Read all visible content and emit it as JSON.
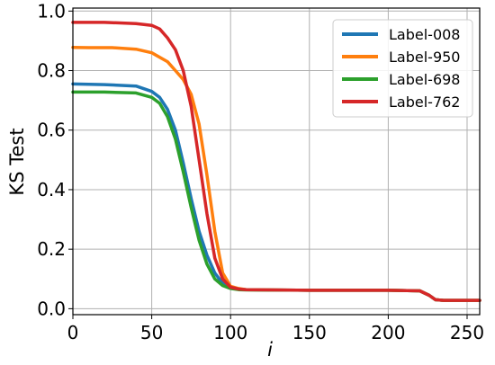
{
  "chart_data": {
    "type": "line",
    "title": "",
    "xlabel": "i",
    "ylabel": "KS Test",
    "xlim": [
      0,
      258
    ],
    "ylim": [
      -0.02,
      1.01
    ],
    "xticks": [
      0,
      50,
      100,
      150,
      200,
      250
    ],
    "xtick_labels": [
      "0",
      "50",
      "100",
      "150",
      "200",
      "250"
    ],
    "yticks": [
      0.0,
      0.2,
      0.4,
      0.6,
      0.8,
      1.0
    ],
    "ytick_labels": [
      "0.0",
      "0.2",
      "0.4",
      "0.6",
      "0.8",
      "1.0"
    ],
    "grid": true,
    "legend_position": "top-right",
    "series": [
      {
        "name": "Label-008",
        "color": "#1f77b4",
        "x": [
          0,
          20,
          40,
          50,
          55,
          60,
          65,
          70,
          75,
          80,
          85,
          90,
          95,
          100,
          105,
          110,
          150,
          200,
          220,
          226,
          230,
          235,
          258
        ],
        "y": [
          0.755,
          0.753,
          0.748,
          0.73,
          0.71,
          0.67,
          0.6,
          0.49,
          0.37,
          0.26,
          0.18,
          0.12,
          0.085,
          0.072,
          0.066,
          0.064,
          0.062,
          0.062,
          0.06,
          0.045,
          0.03,
          0.028,
          0.028
        ]
      },
      {
        "name": "Label-950",
        "color": "#ff7f0e",
        "x": [
          0,
          10,
          25,
          40,
          50,
          60,
          65,
          70,
          75,
          80,
          85,
          90,
          95,
          100,
          105,
          110,
          150,
          200,
          220,
          226,
          230,
          235,
          258
        ],
        "y": [
          0.878,
          0.877,
          0.877,
          0.872,
          0.86,
          0.83,
          0.8,
          0.77,
          0.72,
          0.62,
          0.45,
          0.26,
          0.12,
          0.075,
          0.068,
          0.064,
          0.062,
          0.062,
          0.06,
          0.045,
          0.03,
          0.028,
          0.028
        ]
      },
      {
        "name": "Label-698",
        "color": "#2ca02c",
        "x": [
          0,
          20,
          40,
          50,
          55,
          60,
          65,
          70,
          75,
          80,
          85,
          90,
          95,
          100,
          105,
          110,
          150,
          200,
          220,
          226,
          230,
          235,
          258
        ],
        "y": [
          0.728,
          0.728,
          0.725,
          0.71,
          0.69,
          0.645,
          0.57,
          0.46,
          0.34,
          0.23,
          0.15,
          0.1,
          0.078,
          0.068,
          0.064,
          0.063,
          0.062,
          0.062,
          0.06,
          0.045,
          0.03,
          0.028,
          0.028
        ]
      },
      {
        "name": "Label-762",
        "color": "#d62728",
        "x": [
          0,
          20,
          40,
          50,
          55,
          60,
          65,
          70,
          75,
          80,
          85,
          90,
          95,
          100,
          105,
          110,
          150,
          200,
          220,
          226,
          230,
          235,
          258
        ],
        "y": [
          0.962,
          0.962,
          0.958,
          0.952,
          0.94,
          0.91,
          0.87,
          0.8,
          0.68,
          0.5,
          0.32,
          0.17,
          0.1,
          0.072,
          0.066,
          0.064,
          0.062,
          0.062,
          0.06,
          0.045,
          0.03,
          0.028,
          0.028
        ]
      }
    ]
  }
}
